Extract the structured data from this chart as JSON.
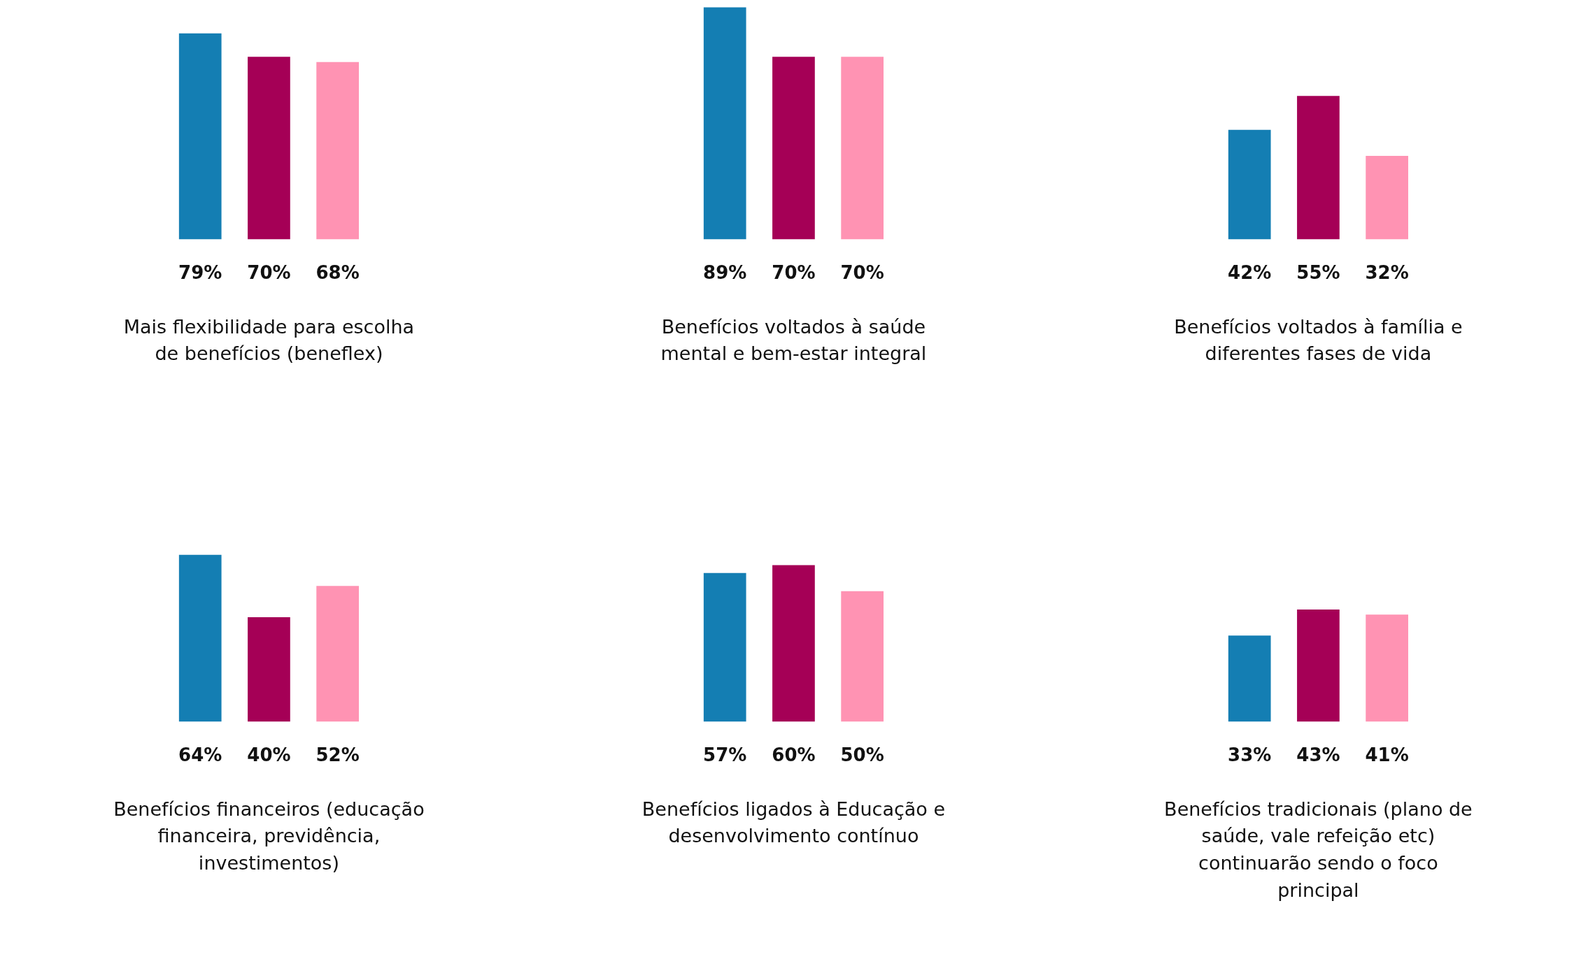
{
  "chart_data": [
    {
      "type": "bar",
      "title": "Mais flexibilidade para escolha de benefícios (beneflex)",
      "categories": [
        null,
        null,
        null
      ],
      "values": [
        79,
        70,
        68
      ],
      "value_labels": [
        "79%",
        "70%",
        "68%"
      ],
      "colors": [
        "#147eb3",
        "#a50056",
        "#ff93b3"
      ]
    },
    {
      "type": "bar",
      "title": "Benefícios voltados à saúde mental e bem-estar integral",
      "categories": [
        null,
        null,
        null
      ],
      "values": [
        89,
        70,
        70
      ],
      "value_labels": [
        "89%",
        "70%",
        "70%"
      ],
      "colors": [
        "#147eb3",
        "#a50056",
        "#ff93b3"
      ]
    },
    {
      "type": "bar",
      "title": "Benefícios voltados à família e diferentes fases de vida",
      "categories": [
        null,
        null,
        null
      ],
      "values": [
        42,
        55,
        32
      ],
      "value_labels": [
        "42%",
        "55%",
        "32%"
      ],
      "colors": [
        "#147eb3",
        "#a50056",
        "#ff93b3"
      ]
    },
    {
      "type": "bar",
      "title": "Benefícios financeiros (educação financeira, previdência, investimentos)",
      "categories": [
        null,
        null,
        null
      ],
      "values": [
        64,
        40,
        52
      ],
      "value_labels": [
        "64%",
        "40%",
        "52%"
      ],
      "colors": [
        "#147eb3",
        "#a50056",
        "#ff93b3"
      ]
    },
    {
      "type": "bar",
      "title": "Benefícios ligados à Educação e desenvolvimento contínuo",
      "categories": [
        null,
        null,
        null
      ],
      "values": [
        57,
        60,
        50
      ],
      "value_labels": [
        "57%",
        "60%",
        "50%"
      ],
      "colors": [
        "#147eb3",
        "#a50056",
        "#ff93b3"
      ]
    },
    {
      "type": "bar",
      "title": "Benefícios tradicionais (plano de saúde, vale refeição etc) continuarão sendo o foco principal",
      "categories": [
        null,
        null,
        null
      ],
      "values": [
        33,
        43,
        41
      ],
      "value_labels": [
        "33%",
        "43%",
        "41%"
      ],
      "colors": [
        "#147eb3",
        "#a50056",
        "#ff93b3"
      ]
    }
  ]
}
